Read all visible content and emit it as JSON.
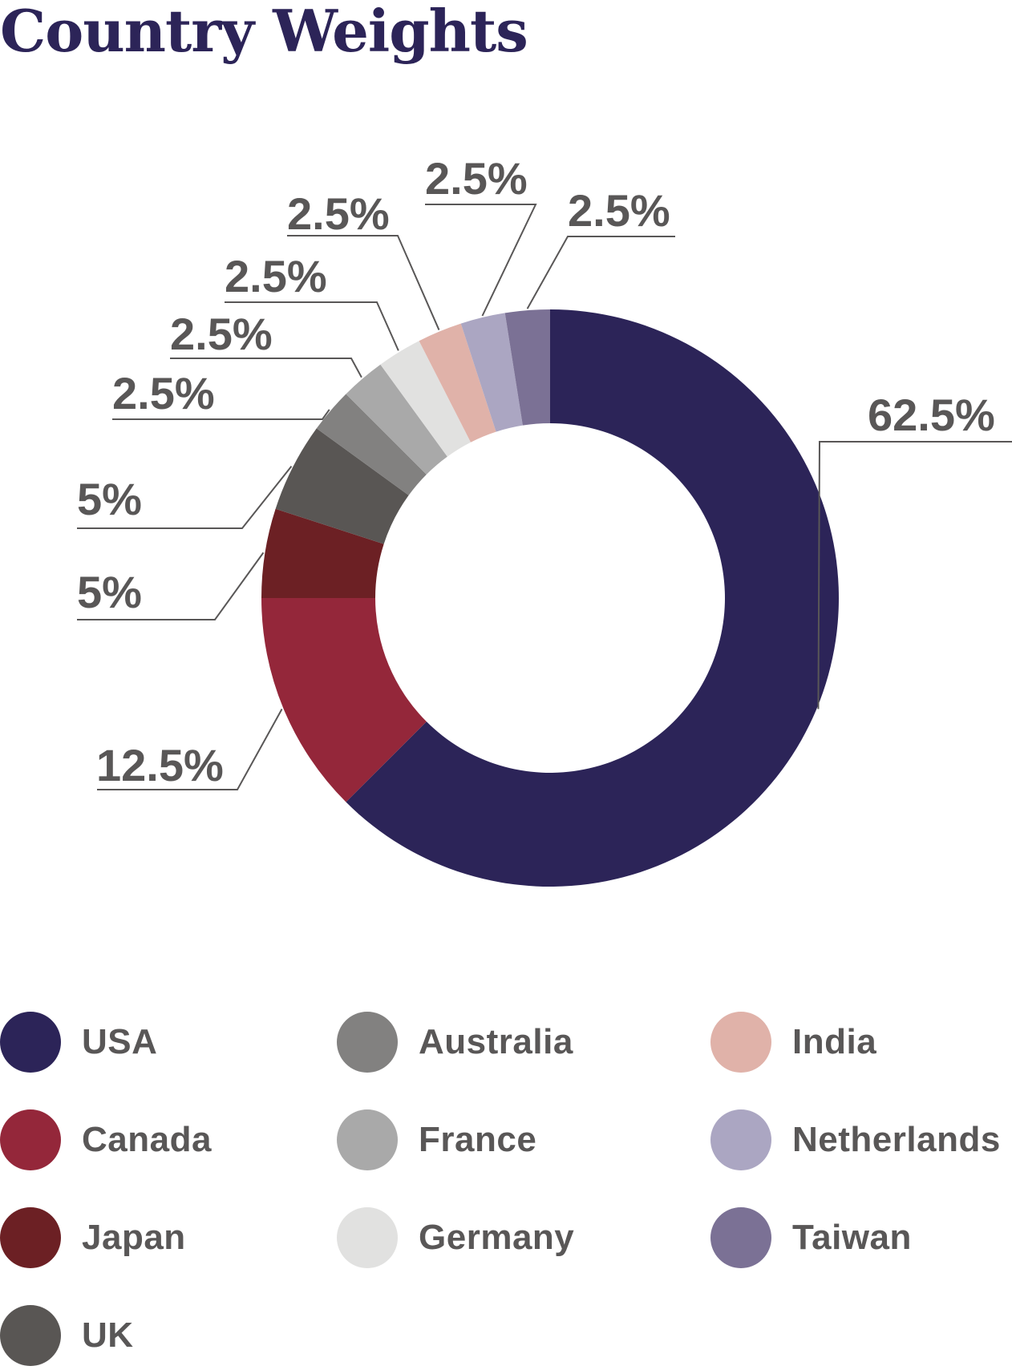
{
  "title": "Country Weights",
  "chart_data": {
    "type": "pie",
    "variant": "donut",
    "title": "Country Weights",
    "legend_position": "bottom",
    "series": [
      {
        "name": "USA",
        "value": 62.5,
        "label": "62.5%",
        "color": "#2c2458"
      },
      {
        "name": "Canada",
        "value": 12.5,
        "label": "12.5%",
        "color": "#94273a"
      },
      {
        "name": "Japan",
        "value": 5,
        "label": "5%",
        "color": "#6c2024"
      },
      {
        "name": "UK",
        "value": 5,
        "label": "5%",
        "color": "#595654"
      },
      {
        "name": "Australia",
        "value": 2.5,
        "label": "2.5%",
        "color": "#828180"
      },
      {
        "name": "France",
        "value": 2.5,
        "label": "2.5%",
        "color": "#a9a9a9"
      },
      {
        "name": "Germany",
        "value": 2.5,
        "label": "2.5%",
        "color": "#e1e1e0"
      },
      {
        "name": "India",
        "value": 2.5,
        "label": "2.5%",
        "color": "#e0b2a9"
      },
      {
        "name": "Netherlands",
        "value": 2.5,
        "label": "2.5%",
        "color": "#aba6c2"
      },
      {
        "name": "Taiwan",
        "value": 2.5,
        "label": "2.5%",
        "color": "#7b7195"
      }
    ]
  },
  "legend": {
    "items": [
      {
        "label": "USA",
        "color": "#2c2458"
      },
      {
        "label": "Canada",
        "color": "#94273a"
      },
      {
        "label": "Japan",
        "color": "#6c2024"
      },
      {
        "label": "UK",
        "color": "#595654"
      },
      {
        "label": "Australia",
        "color": "#828180"
      },
      {
        "label": "France",
        "color": "#a9a9a9"
      },
      {
        "label": "Germany",
        "color": "#e1e1e0"
      },
      {
        "label": "India",
        "color": "#e0b2a9"
      },
      {
        "label": "Netherlands",
        "color": "#aba6c2"
      },
      {
        "label": "Taiwan",
        "color": "#7b7195"
      }
    ]
  }
}
